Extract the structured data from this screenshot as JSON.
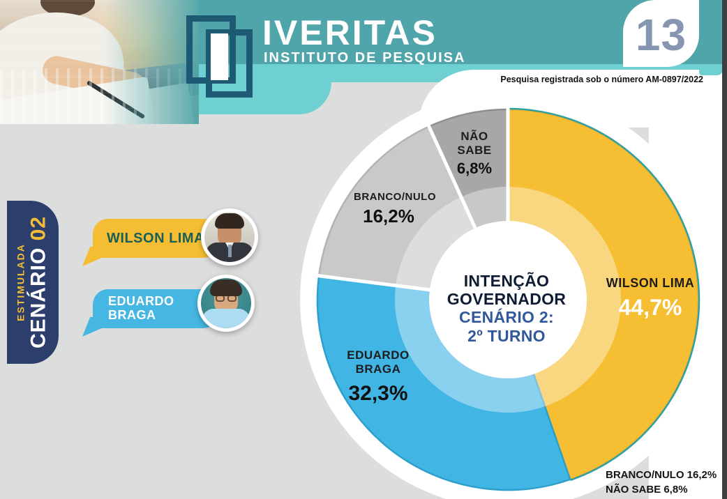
{
  "header": {
    "logo_title": "IVERITAS",
    "logo_subtitle": "INSTITUTO DE PESQUISA",
    "page_number": "13",
    "registration": "Pesquisa registrada sob o número AM-0897/2022"
  },
  "sidebar": {
    "stimulus": "ESTIMULADA",
    "scenario": "CENÁRIO ",
    "scenario_number": "02"
  },
  "candidates": [
    {
      "name": "WILSON LIMA",
      "ribbon_color": "#F5BD33",
      "text_color": "#195F56"
    },
    {
      "name": "EDUARDO BRAGA",
      "ribbon_color": "#45B7E2",
      "text_color": "#FFFFFF"
    }
  ],
  "chart_data": {
    "type": "pie",
    "donut": true,
    "title": "INTENÇÃO GOVERNADOR",
    "subtitle": "CENÁRIO 2: 2º TURNO",
    "center_lines": [
      "INTENÇÃO",
      "GOVERNADOR",
      "CENÁRIO 2:",
      "2º TURNO"
    ],
    "unit": "%",
    "start_angle_deg": 0,
    "direction": "clockwise",
    "series": [
      {
        "label": "WILSON LIMA",
        "value": 44.7,
        "display": "44,7%",
        "color": "#F6BE33",
        "edge": "#EBAD2B",
        "outer_edge": "#2FA0A2",
        "gap_before": true
      },
      {
        "label": "EDUARDO BRAGA",
        "value": 32.3,
        "display": "32,3%",
        "color": "#41B5E4",
        "edge": "#2D9FCC",
        "gap_before": false
      },
      {
        "label": "BRANCO/NULO",
        "value": 16.2,
        "display": "16,2%",
        "color": "#C9C9C9",
        "edge": "#B3B3B3",
        "gap_before": true
      },
      {
        "label": "NÃO SABE",
        "value": 6.8,
        "display": "6,8%",
        "color": "#A7A7A7",
        "edge": "#8F8F8F",
        "gap_before": true
      }
    ]
  },
  "footnote": {
    "line1": "BRANCO/NULO 16,2%",
    "line2": "NÃO SABE 6,8%"
  },
  "colors": {
    "teal_dark": "#4FA5A9",
    "teal_light": "#6FD0D2",
    "navy": "#2C3E6B",
    "accent_yellow": "#F5BD33",
    "accent_blue": "#45B7E2",
    "page_background": "#DCDDDD",
    "page_number_color": "#8695B0",
    "center_title_color": "#0E1B33",
    "center_subtitle_color": "#30589B"
  }
}
